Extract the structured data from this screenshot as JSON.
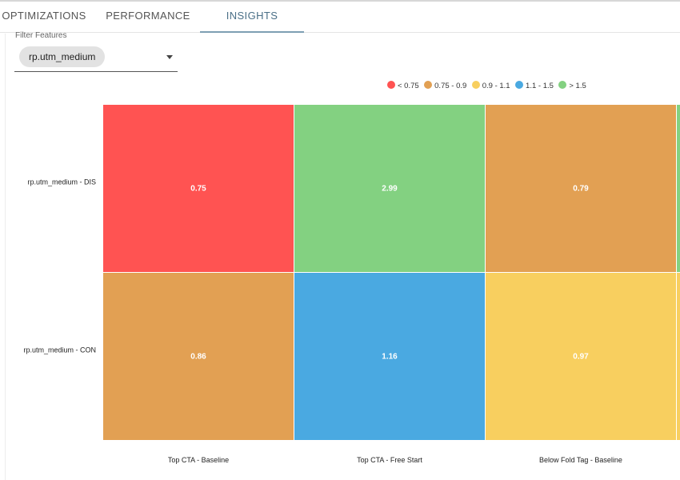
{
  "tabs": [
    {
      "label": "OPTIMIZATIONS"
    },
    {
      "label": "PERFORMANCE"
    },
    {
      "label": "INSIGHTS",
      "active": true
    }
  ],
  "filter": {
    "label": "Filter Features",
    "selected": "rp.utm_medium"
  },
  "legend": [
    {
      "label": "< 0.75",
      "color": "#ff5352"
    },
    {
      "label": "0.75 - 0.9",
      "color": "#e2a053"
    },
    {
      "label": "0.9 - 1.1",
      "color": "#f8cf5f"
    },
    {
      "label": "1.1 - 1.5",
      "color": "#4aa9e1"
    },
    {
      "label": "> 1.5",
      "color": "#83d181"
    }
  ],
  "chart_data": {
    "type": "heatmap",
    "title": "",
    "rows": [
      "rp.utm_medium - DIS",
      "rp.utm_medium - CON"
    ],
    "columns": [
      "Top CTA - Baseline",
      "Top CTA - Free Start",
      "Below Fold Tag - Baseline"
    ],
    "values": [
      [
        0.75,
        2.99,
        0.79
      ],
      [
        0.86,
        1.16,
        0.97
      ]
    ],
    "value_labels": [
      [
        "0.75",
        "2.99",
        "0.79"
      ],
      [
        "0.86",
        "1.16",
        "0.97"
      ]
    ],
    "cell_colors": [
      [
        "#ff5352",
        "#83d181",
        "#e2a053"
      ],
      [
        "#e2a053",
        "#4aa9e1",
        "#f8cf5f"
      ]
    ],
    "partial_next_column_colors": [
      "#83d181",
      "#f8cf5f"
    ]
  }
}
